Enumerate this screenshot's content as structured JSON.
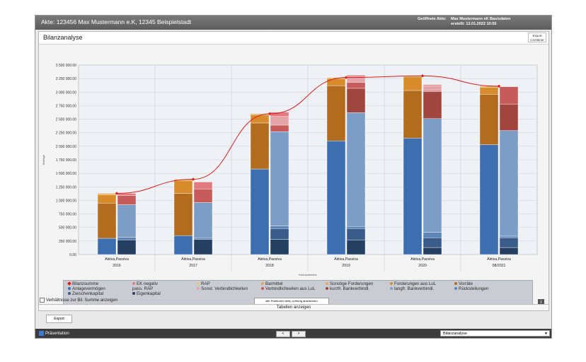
{
  "window": {
    "title": "Akte: 123456 Max Mustermann e.K, 12345 Beispielstadt",
    "opened_label": "Geöffnete Akte:",
    "opened_value": "Max Mustermann eK Basisdaten",
    "created_value": "erstellt: 12.01.2022 10:55"
  },
  "panel": {
    "title": "Bilanzanalyse",
    "export_container_line1": "Export",
    "export_container_line2": "Container"
  },
  "chart_data": {
    "type": "bar",
    "ylabel": "Beträge",
    "xlabel": "Kennzahlreihe",
    "ylim": [
      0,
      3500000
    ],
    "yticks": [
      "3 500 000.00",
      "3 250 000.00",
      "3 000 000.00",
      "2 750 000.00",
      "2 500 000.00",
      "2 250 000.00",
      "2 000 000.00",
      "1 750 000.00",
      "1 500 000.00",
      "1 250 000.00",
      "1 000 000.00",
      "750 000.00",
      "500 000.00",
      "250 000.00",
      "0.00"
    ],
    "categories": [
      "2016",
      "2017",
      "2018",
      "2019",
      "2020",
      "08/2021"
    ],
    "bar_label": "Aktiva,Passiva",
    "aktiva": [
      {
        "name": "Anlagevermögen",
        "color": "#3d6eb0",
        "values": [
          300000,
          350000,
          1580000,
          2100000,
          2150000,
          2030000
        ]
      },
      {
        "name": "Vorräte",
        "color": "#b36b1e",
        "values": [
          650000,
          780000,
          850000,
          1020000,
          880000,
          930000
        ]
      },
      {
        "name": "Forderungen aus LuL",
        "color": "#d88b2a",
        "values": [
          150000,
          230000,
          150000,
          130000,
          250000,
          130000
        ]
      },
      {
        "name": "Sonstige Forderungen",
        "color": "#e9a94c",
        "values": [
          30000,
          30000,
          20000,
          20000,
          20000,
          20000
        ]
      }
    ],
    "passiva": [
      {
        "name": "Eigenkapital",
        "color": "#243f62",
        "values": [
          270000,
          280000,
          280000,
          270000,
          130000,
          130000
        ]
      },
      {
        "name": "Zwischenkapital",
        "color": "#3a5c8a",
        "values": [
          0,
          0,
          200000,
          210000,
          180000,
          180000
        ]
      },
      {
        "name": "Rückstellungen",
        "color": "#5d86b6",
        "values": [
          50000,
          30000,
          50000,
          40000,
          100000,
          30000
        ]
      },
      {
        "name": "langfr. Bankverbindl.",
        "color": "#7c9ec6",
        "values": [
          600000,
          650000,
          1740000,
          2100000,
          2100000,
          1950000
        ]
      },
      {
        "name": "kurzfr. Bankverbindl.",
        "color": "#a0463f",
        "values": [
          0,
          0,
          0,
          450000,
          500000,
          490000
        ]
      },
      {
        "name": "Verbindlichkeiten aus LuL",
        "color": "#c75b5b",
        "values": [
          170000,
          250000,
          120000,
          110000,
          20000,
          320000
        ]
      },
      {
        "name": "Sonst. Verbindlichkeiten",
        "color": "#e4a4a8",
        "values": [
          0,
          0,
          160000,
          140000,
          90000,
          0
        ]
      },
      {
        "name": "EK negativ",
        "color": "#e37b7e",
        "values": [
          40000,
          130000,
          80000,
          0,
          20000,
          0
        ]
      }
    ],
    "bilanzsumme": {
      "name": "Bilanzsumme",
      "color": "#e21a1a",
      "values": [
        1130000,
        1390000,
        2600000,
        3270000,
        3300000,
        3110000
      ]
    },
    "legend": [
      {
        "label": "Bilanzsumme",
        "color": "#e21a1a",
        "shape": "diamond"
      },
      {
        "label": "EK negativ",
        "color": "#e37b7e"
      },
      {
        "label": "RAP",
        "color": "#f0c27a"
      },
      {
        "label": "Barmittel",
        "color": "#e9a94c"
      },
      {
        "label": "Sonstige Forderungen",
        "color": "#e9a94c"
      },
      {
        "label": "Forderungen aus LuL",
        "color": "#d88b2a"
      },
      {
        "label": "Vorräte",
        "color": "#b36b1e"
      },
      {
        "label": "Anlagevermögen",
        "color": "#3d6eb0"
      },
      {
        "label": "pass. RAP",
        "color": ""
      },
      {
        "label": "Sonst. Verbindlichkeiten",
        "color": "#e4a4a8"
      },
      {
        "label": "Verbindlichkeiten aus LuL",
        "color": "#c75b5b"
      },
      {
        "label": "kurzfr. Bankverbindl.",
        "color": "#a0463f"
      },
      {
        "label": "langfr. Bankverbindl.",
        "color": "#7c9ec6"
      },
      {
        "label": "Rückstellungen",
        "color": "#5d86b6"
      },
      {
        "label": "Zwischenkapital",
        "color": "#3a5c8a"
      },
      {
        "label": "Eigenkapital",
        "color": "#243f62"
      }
    ]
  },
  "bottom": {
    "ratio_checkbox_label": "Verhältnisse zur Bil. Summe anzeigen",
    "tab_label": "alle Positionen aktiv, vorherig ausblenden",
    "tables_label": "Tabellen anzeigen",
    "export_label": "Export"
  },
  "statusbar": {
    "presentation_label": "Präsentation",
    "prev_label": "<",
    "next_label": ">",
    "view_select": "Bilanzanalyse"
  }
}
